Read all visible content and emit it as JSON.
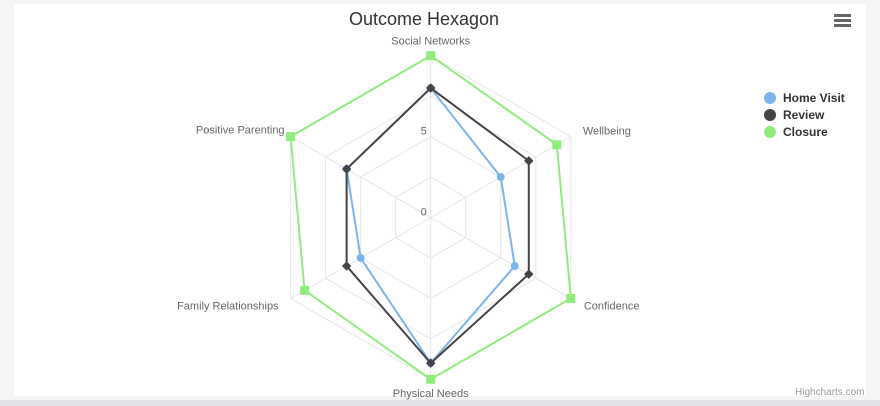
{
  "header": {
    "title": "Outcome Hexagon"
  },
  "page": {
    "credits": "Highcharts.com"
  },
  "icons": {
    "context_menu": "hamburger-icon"
  },
  "chart_data": {
    "type": "radar",
    "title": "Outcome Hexagon",
    "categories": [
      "Social Networks",
      "Wellbeing",
      "Confidence",
      "Physical Needs",
      "Family Relationships",
      "Positive Parenting"
    ],
    "series": [
      {
        "name": "Home Visit",
        "color": "#7CB5EC",
        "marker": "circle",
        "values": [
          8,
          5,
          6,
          9,
          5,
          6
        ]
      },
      {
        "name": "Review",
        "color": "#434348",
        "marker": "diamond",
        "values": [
          8,
          7,
          7,
          9,
          6,
          6
        ]
      },
      {
        "name": "Closure",
        "color": "#90ED7D",
        "marker": "square",
        "values": [
          10,
          9,
          10,
          10,
          9,
          10
        ]
      }
    ],
    "yaxis": {
      "min": 0,
      "max": 10,
      "tick_interval": 2.5,
      "tick_labels": [
        {
          "value": 0,
          "text": "0"
        },
        {
          "value": 5,
          "text": "5"
        }
      ]
    },
    "grid": {
      "shape": "polygon",
      "on": true,
      "color": "#E6E6E6"
    },
    "legend_position": "right-middle",
    "label_color": "#666666",
    "title_color": "#333333",
    "credits": "Highcharts.com"
  }
}
